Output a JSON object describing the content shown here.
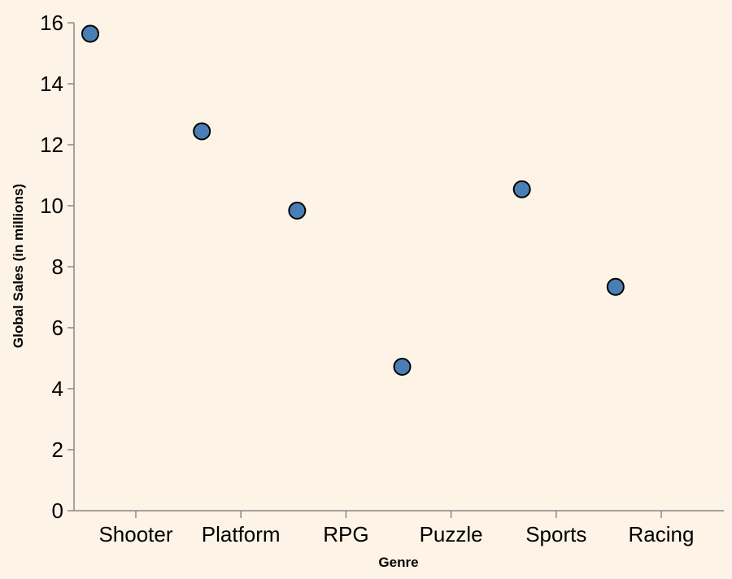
{
  "chart_data": {
    "type": "scatter",
    "title": "",
    "xlabel": "Genre",
    "ylabel": "Global Sales (in millions)",
    "ylim": [
      0,
      16
    ],
    "y_ticks": [
      "0",
      "2",
      "4",
      "6",
      "8",
      "10",
      "12",
      "14",
      "16"
    ],
    "x_tick_labels": [
      "Shooter",
      "Platform",
      "RPG",
      "Puzzle",
      "Sports",
      "Racing"
    ],
    "grid": false,
    "point_color": "#4a7fb5",
    "background_color": "#fdf3e6",
    "points": [
      {
        "genre": "Shooter",
        "value": 15.64
      },
      {
        "genre": "Platform",
        "value": 12.44
      },
      {
        "genre": "RPG",
        "value": 9.84
      },
      {
        "genre": "Puzzle",
        "value": 4.72
      },
      {
        "genre": "Sports",
        "value": 10.54
      },
      {
        "genre": "Racing",
        "value": 7.34
      }
    ]
  }
}
